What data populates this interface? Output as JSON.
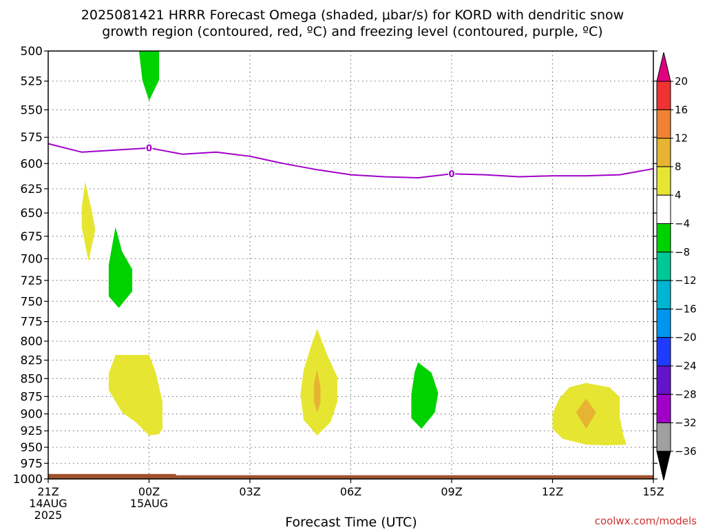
{
  "title_line1": "2025081421 HRRR Forecast Omega (shaded, μbar/s) for KORD with dendritic snow",
  "title_line2": "growth region (contoured, red, ºC) and freezing level (contoured, purple, ºC)",
  "xlabel": "Forecast Time (UTC)",
  "credit": "coolwx.com/models",
  "chart_data": {
    "type": "heatmap",
    "y_ticks": [
      500,
      525,
      550,
      575,
      600,
      625,
      650,
      675,
      700,
      725,
      750,
      775,
      800,
      825,
      850,
      875,
      900,
      925,
      950,
      975,
      1000
    ],
    "y_tick_labels": [
      "500",
      "525",
      "550",
      "575",
      "600",
      "625",
      "650",
      "675",
      "700",
      "725",
      "750",
      "775",
      "800",
      "825",
      "850",
      "875",
      "900",
      "925",
      "950",
      "975",
      "1000"
    ],
    "x_ticks": [
      {
        "hour": 0,
        "lines": [
          "21Z",
          "14AUG",
          "2025"
        ]
      },
      {
        "hour": 3,
        "lines": [
          "00Z",
          "15AUG"
        ]
      },
      {
        "hour": 6,
        "lines": [
          "03Z"
        ]
      },
      {
        "hour": 9,
        "lines": [
          "06Z"
        ]
      },
      {
        "hour": 12,
        "lines": [
          "09Z"
        ]
      },
      {
        "hour": 15,
        "lines": [
          "12Z"
        ]
      },
      {
        "hour": 18,
        "lines": [
          "15Z"
        ]
      }
    ],
    "xlim": [
      0,
      18
    ],
    "ylim_hPa": [
      500,
      1000
    ],
    "grid": true,
    "freezing_level": {
      "color": "#a000c8",
      "label": "0",
      "label_hours": [
        3,
        12
      ],
      "x_hours": [
        0,
        1,
        2,
        3,
        4,
        5,
        6,
        7,
        8,
        9,
        10,
        11,
        12,
        13,
        14,
        15,
        16,
        17,
        18
      ],
      "y_hPa": [
        581,
        589,
        587,
        585,
        591,
        589,
        593,
        600,
        606,
        611,
        613,
        614,
        610,
        611,
        613,
        612,
        612,
        611,
        605
      ]
    },
    "omega_regions": [
      {
        "category": "-8 to -4",
        "color": "#00d200",
        "points": [
          [
            2.7,
            500
          ],
          [
            3.3,
            500
          ],
          [
            3.3,
            524
          ],
          [
            3.0,
            542
          ],
          [
            2.8,
            524
          ]
        ]
      },
      {
        "category": "4 to 8",
        "color": "#e6e632",
        "points": [
          [
            1.1,
            618
          ],
          [
            1.3,
            648
          ],
          [
            1.4,
            668
          ],
          [
            1.2,
            703
          ],
          [
            1.0,
            666
          ],
          [
            1.0,
            643
          ]
        ]
      },
      {
        "category": "-8 to -4",
        "color": "#00d200",
        "points": [
          [
            2.0,
            665
          ],
          [
            2.2,
            692
          ],
          [
            2.5,
            712
          ],
          [
            2.5,
            738
          ],
          [
            2.1,
            758
          ],
          [
            1.8,
            744
          ],
          [
            1.8,
            707
          ]
        ]
      },
      {
        "category": "4 to 8",
        "color": "#e6e632",
        "points": [
          [
            2.0,
            818
          ],
          [
            3.0,
            818
          ],
          [
            3.2,
            842
          ],
          [
            3.4,
            882
          ],
          [
            3.4,
            922
          ],
          [
            3.3,
            930
          ],
          [
            3.0,
            932
          ],
          [
            2.6,
            912
          ],
          [
            2.2,
            898
          ],
          [
            1.8,
            866
          ],
          [
            1.8,
            843
          ]
        ]
      },
      {
        "category": "4 to 8",
        "color": "#e6e632",
        "points": [
          [
            8.0,
            784
          ],
          [
            8.3,
            818
          ],
          [
            8.6,
            848
          ],
          [
            8.6,
            883
          ],
          [
            8.4,
            912
          ],
          [
            8.0,
            932
          ],
          [
            7.6,
            909
          ],
          [
            7.5,
            872
          ],
          [
            7.6,
            838
          ],
          [
            7.8,
            809
          ]
        ]
      },
      {
        "category": "8 to 12",
        "color": "#e6b432",
        "points": [
          [
            8.0,
            838
          ],
          [
            8.1,
            862
          ],
          [
            8.1,
            884
          ],
          [
            8.0,
            898
          ],
          [
            7.9,
            882
          ],
          [
            7.9,
            857
          ]
        ]
      },
      {
        "category": "-8 to -4",
        "color": "#00d200",
        "points": [
          [
            11.0,
            828
          ],
          [
            11.4,
            842
          ],
          [
            11.6,
            870
          ],
          [
            11.5,
            898
          ],
          [
            11.1,
            922
          ],
          [
            10.8,
            906
          ],
          [
            10.8,
            872
          ],
          [
            10.9,
            841
          ]
        ]
      },
      {
        "category": "4 to 8",
        "color": "#e6e632",
        "points": [
          [
            16.0,
            856
          ],
          [
            16.7,
            862
          ],
          [
            17.0,
            876
          ],
          [
            17.0,
            905
          ],
          [
            17.1,
            930
          ],
          [
            17.2,
            946
          ],
          [
            16.6,
            947
          ],
          [
            16.0,
            946
          ],
          [
            15.3,
            937
          ],
          [
            15.0,
            922
          ],
          [
            15.0,
            900
          ],
          [
            15.2,
            878
          ],
          [
            15.5,
            862
          ]
        ]
      },
      {
        "category": "8 to 12",
        "color": "#e6b432",
        "points": [
          [
            16.0,
            878
          ],
          [
            16.3,
            898
          ],
          [
            16.0,
            922
          ],
          [
            15.7,
            898
          ]
        ]
      }
    ],
    "surface": {
      "color": "#a0522d",
      "top_hPa": 994,
      "bump_end_hour": 3.8,
      "bump_top_hPa": 992
    },
    "colorbar": {
      "levels": [
        "20",
        "16",
        "12",
        "8",
        "4",
        "−4",
        "−8",
        "−12",
        "−16",
        "−20",
        "−24",
        "−28",
        "−32",
        "−36"
      ],
      "colors": [
        "#e00080",
        "#f03232",
        "#f08232",
        "#e6b432",
        "#e6e632",
        "#ffffff",
        "#00d200",
        "#00c896",
        "#00b4d2",
        "#0096f0",
        "#1e3cff",
        "#6414c8",
        "#a000c8",
        "#a0a0a0",
        "#000000"
      ]
    }
  }
}
